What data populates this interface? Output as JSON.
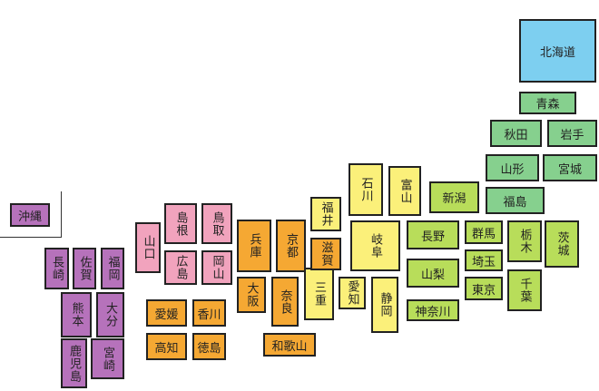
{
  "prefectures": [
    "北海道",
    "青森",
    "秋田",
    "岩手",
    "山形",
    "宮城",
    "福島",
    "新潟",
    "長野",
    "群馬",
    "栃木",
    "茨城",
    "山梨",
    "埼玉",
    "千葉",
    "東京",
    "神奈川",
    "石川",
    "富山",
    "福井",
    "岐阜",
    "愛知",
    "静岡",
    "三重",
    "滋賀",
    "兵庫",
    "京都",
    "大阪",
    "奈良",
    "和歌山",
    "島根",
    "鳥取",
    "山口",
    "広島",
    "岡山",
    "愛媛",
    "香川",
    "高知",
    "徳島",
    "長崎",
    "佐賀",
    "福岡",
    "熊本",
    "大分",
    "鹿児島",
    "宮崎",
    "沖縄"
  ]
}
